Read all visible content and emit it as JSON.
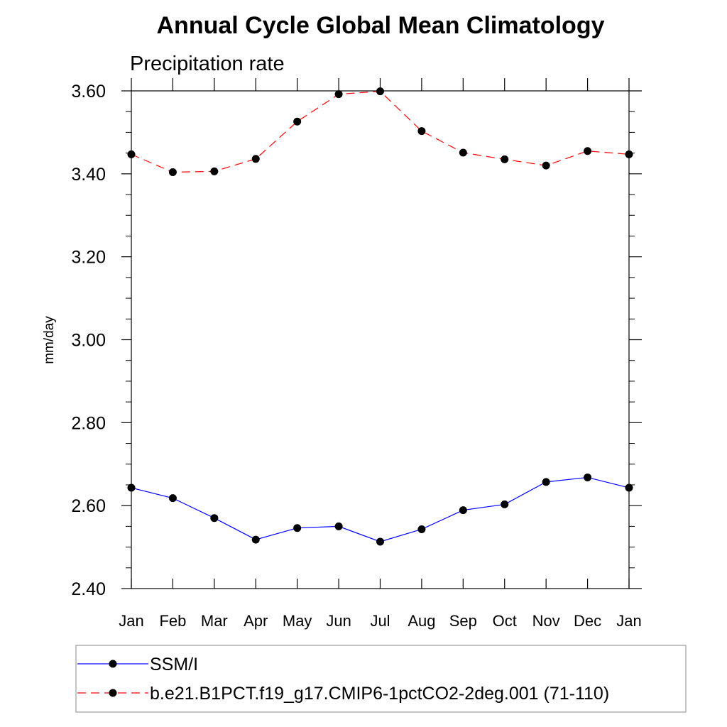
{
  "chart_data": {
    "type": "line",
    "title": "Annual Cycle Global Mean Climatology",
    "subtitle": "Precipitation rate",
    "xlabel": "",
    "ylabel": "mm/day",
    "categories": [
      "Jan",
      "Feb",
      "Mar",
      "Apr",
      "May",
      "Jun",
      "Jul",
      "Aug",
      "Sep",
      "Oct",
      "Nov",
      "Dec",
      "Jan"
    ],
    "ylim": [
      2.4,
      3.6
    ],
    "yticks": [
      "2.40",
      "2.60",
      "2.80",
      "3.00",
      "3.20",
      "3.40",
      "3.60"
    ],
    "ytick_values": [
      2.4,
      2.6,
      2.8,
      3.0,
      3.2,
      3.4,
      3.6
    ],
    "series": [
      {
        "name": "SSM/I",
        "color": "#0000ff",
        "dash": "solid",
        "values": [
          2.643,
          2.618,
          2.57,
          2.518,
          2.546,
          2.55,
          2.513,
          2.543,
          2.589,
          2.603,
          2.657,
          2.668,
          2.643
        ]
      },
      {
        "name": "b.e21.B1PCT.f19_g17.CMIP6-1pctCO2-2deg.001 (71-110)",
        "color": "#ff0000",
        "dash": "dashed",
        "values": [
          3.447,
          3.404,
          3.406,
          3.436,
          3.526,
          3.592,
          3.599,
          3.503,
          3.451,
          3.435,
          3.42,
          3.455,
          3.447
        ]
      }
    ],
    "legend": "bottom",
    "grid": false
  }
}
